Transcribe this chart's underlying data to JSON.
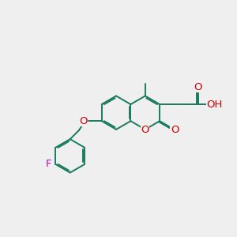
{
  "bg": "#efefef",
  "bc": "#1a7a5e",
  "hc": "#cc0000",
  "fc": "#cc00cc",
  "lw": 1.4,
  "sep": 0.055,
  "r": 0.72,
  "fs": 9.5,
  "xlim": [
    -4.8,
    5.2
  ],
  "ylim": [
    -3.2,
    3.2
  ],
  "figsize": [
    3.0,
    3.0
  ],
  "dpi": 100
}
